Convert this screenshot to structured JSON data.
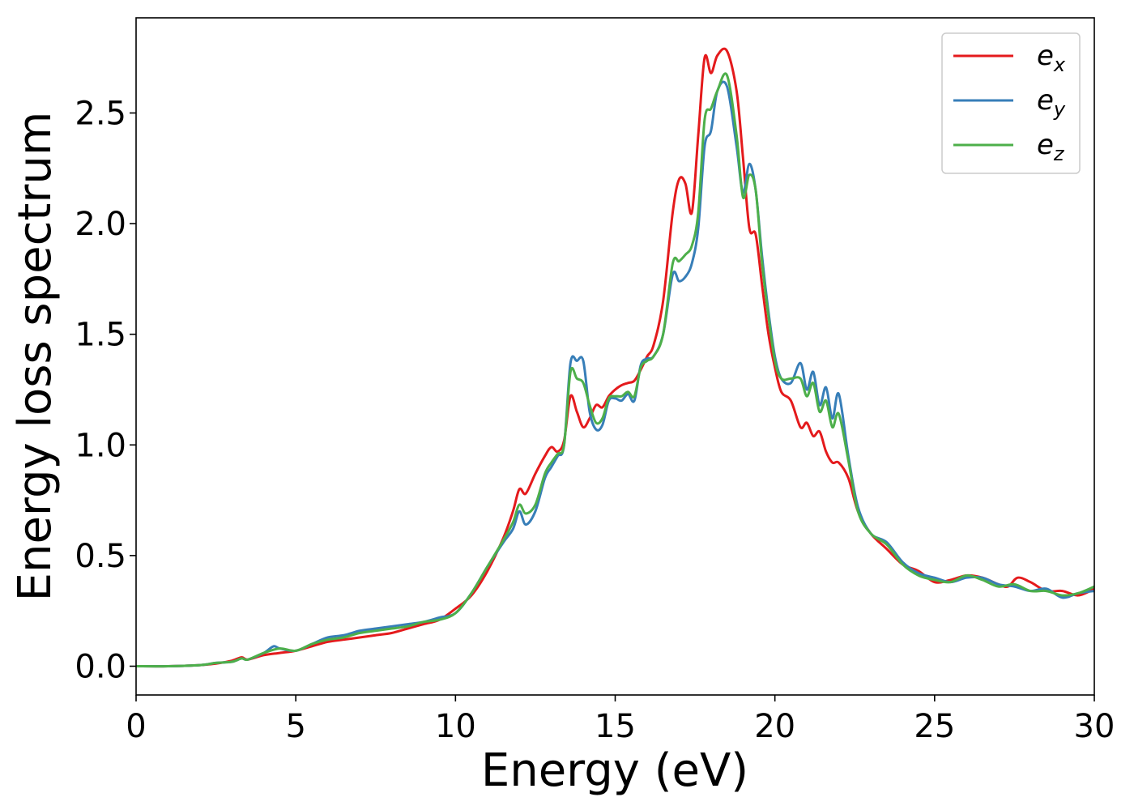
{
  "chart_data": {
    "type": "line",
    "xlabel": "Energy (eV)",
    "ylabel": "Energy loss spectrum",
    "xlim": [
      0,
      30
    ],
    "ylim": [
      -0.13,
      2.93
    ],
    "xticks": [
      0,
      5,
      10,
      15,
      20,
      25,
      30
    ],
    "xtick_labels": [
      "0",
      "5",
      "10",
      "15",
      "20",
      "25",
      "30"
    ],
    "yticks": [
      0.0,
      0.5,
      1.0,
      1.5,
      2.0,
      2.5
    ],
    "ytick_labels": [
      "0.0",
      "0.5",
      "1.0",
      "1.5",
      "2.0",
      "2.5"
    ],
    "grid": false,
    "legend_position": "top-right",
    "series": [
      {
        "name": "e_x",
        "legend_main": "e",
        "legend_sub": "x",
        "color": "#e41a1c",
        "x": [
          0,
          1,
          2,
          2.5,
          3,
          3.3,
          3.5,
          4,
          4.5,
          5,
          5.5,
          6,
          6.5,
          7,
          7.5,
          8,
          8.5,
          9,
          9.5,
          10,
          10.5,
          11,
          11.5,
          11.8,
          12,
          12.2,
          12.5,
          12.8,
          13,
          13.2,
          13.4,
          13.6,
          13.8,
          14,
          14.2,
          14.4,
          14.6,
          14.8,
          15,
          15.2,
          15.4,
          15.6,
          15.8,
          16,
          16.2,
          16.5,
          16.8,
          17,
          17.2,
          17.4,
          17.6,
          17.8,
          18,
          18.2,
          18.5,
          18.8,
          19,
          19.2,
          19.4,
          19.6,
          19.8,
          20,
          20.2,
          20.5,
          20.8,
          21,
          21.2,
          21.4,
          21.6,
          21.8,
          22,
          22.3,
          22.6,
          23,
          23.5,
          24,
          24.5,
          25,
          25.5,
          26,
          26.5,
          27,
          27.3,
          27.6,
          28,
          28.5,
          29,
          29.5,
          30
        ],
        "y": [
          0,
          0,
          0.005,
          0.012,
          0.025,
          0.04,
          0.03,
          0.05,
          0.06,
          0.07,
          0.09,
          0.11,
          0.12,
          0.13,
          0.14,
          0.15,
          0.17,
          0.19,
          0.21,
          0.26,
          0.32,
          0.43,
          0.58,
          0.7,
          0.8,
          0.78,
          0.87,
          0.95,
          0.99,
          0.97,
          1.02,
          1.22,
          1.15,
          1.08,
          1.12,
          1.18,
          1.17,
          1.22,
          1.25,
          1.27,
          1.28,
          1.29,
          1.34,
          1.4,
          1.45,
          1.65,
          2.05,
          2.2,
          2.18,
          2.05,
          2.4,
          2.75,
          2.68,
          2.76,
          2.78,
          2.6,
          2.3,
          1.98,
          1.95,
          1.72,
          1.5,
          1.35,
          1.24,
          1.2,
          1.08,
          1.1,
          1.04,
          1.06,
          0.97,
          0.92,
          0.92,
          0.85,
          0.7,
          0.6,
          0.53,
          0.46,
          0.43,
          0.38,
          0.39,
          0.41,
          0.4,
          0.37,
          0.36,
          0.4,
          0.38,
          0.34,
          0.34,
          0.32,
          0.35
        ]
      },
      {
        "name": "e_y",
        "legend_main": "e",
        "legend_sub": "y",
        "color": "#377eb8",
        "x": [
          0,
          1,
          2,
          2.5,
          3,
          3.3,
          3.5,
          4,
          4.3,
          4.5,
          5,
          5.5,
          6,
          6.5,
          7,
          7.5,
          8,
          8.5,
          9,
          9.5,
          10,
          10.5,
          11,
          11.5,
          11.8,
          12,
          12.2,
          12.5,
          12.8,
          13,
          13.2,
          13.4,
          13.6,
          13.8,
          14,
          14.2,
          14.4,
          14.6,
          14.8,
          15,
          15.2,
          15.4,
          15.6,
          15.8,
          16,
          16.2,
          16.5,
          16.8,
          17,
          17.2,
          17.4,
          17.6,
          17.8,
          18,
          18.2,
          18.5,
          18.8,
          19,
          19.2,
          19.4,
          19.6,
          19.8,
          20,
          20.2,
          20.5,
          20.8,
          21,
          21.2,
          21.4,
          21.6,
          21.8,
          22,
          22.3,
          22.6,
          23,
          23.5,
          24,
          24.5,
          25,
          25.5,
          26,
          26.5,
          27,
          27.5,
          28,
          28.5,
          29,
          29.5,
          30
        ],
        "y": [
          0,
          0,
          0.005,
          0.015,
          0.02,
          0.035,
          0.03,
          0.06,
          0.09,
          0.08,
          0.07,
          0.1,
          0.13,
          0.14,
          0.16,
          0.17,
          0.18,
          0.19,
          0.2,
          0.22,
          0.24,
          0.33,
          0.45,
          0.56,
          0.62,
          0.7,
          0.64,
          0.7,
          0.85,
          0.9,
          0.95,
          1.0,
          1.37,
          1.38,
          1.38,
          1.15,
          1.07,
          1.09,
          1.2,
          1.21,
          1.2,
          1.23,
          1.2,
          1.36,
          1.39,
          1.4,
          1.5,
          1.77,
          1.74,
          1.76,
          1.82,
          1.98,
          2.35,
          2.42,
          2.6,
          2.62,
          2.35,
          2.14,
          2.27,
          2.15,
          1.85,
          1.6,
          1.4,
          1.3,
          1.28,
          1.37,
          1.25,
          1.33,
          1.18,
          1.26,
          1.12,
          1.23,
          0.95,
          0.72,
          0.6,
          0.56,
          0.47,
          0.42,
          0.4,
          0.38,
          0.4,
          0.4,
          0.37,
          0.36,
          0.34,
          0.35,
          0.31,
          0.33,
          0.34
        ]
      },
      {
        "name": "e_z",
        "legend_main": "e",
        "legend_sub": "z",
        "color": "#4daf4a",
        "x": [
          0,
          1,
          2,
          2.5,
          3,
          3.3,
          3.5,
          4,
          4.5,
          5,
          5.5,
          6,
          6.5,
          7,
          7.5,
          8,
          8.5,
          9,
          9.5,
          10,
          10.5,
          11,
          11.5,
          11.8,
          12,
          12.2,
          12.5,
          12.8,
          13,
          13.2,
          13.4,
          13.6,
          13.8,
          14,
          14.2,
          14.4,
          14.6,
          14.8,
          15,
          15.2,
          15.4,
          15.6,
          15.8,
          16,
          16.2,
          16.5,
          16.8,
          17,
          17.2,
          17.4,
          17.6,
          17.8,
          18,
          18.2,
          18.5,
          18.8,
          19,
          19.2,
          19.4,
          19.6,
          19.8,
          20,
          20.2,
          20.5,
          20.8,
          21,
          21.2,
          21.4,
          21.6,
          21.8,
          22,
          22.3,
          22.6,
          23,
          23.5,
          24,
          24.5,
          25,
          25.5,
          26,
          26.5,
          27,
          27.5,
          28,
          28.5,
          29,
          29.5,
          30
        ],
        "y": [
          0,
          0,
          0.005,
          0.015,
          0.02,
          0.035,
          0.03,
          0.06,
          0.08,
          0.07,
          0.1,
          0.12,
          0.13,
          0.15,
          0.16,
          0.17,
          0.18,
          0.2,
          0.21,
          0.24,
          0.33,
          0.45,
          0.57,
          0.65,
          0.73,
          0.69,
          0.73,
          0.87,
          0.92,
          0.96,
          1.0,
          1.33,
          1.3,
          1.28,
          1.18,
          1.1,
          1.12,
          1.21,
          1.22,
          1.22,
          1.24,
          1.22,
          1.35,
          1.38,
          1.4,
          1.5,
          1.82,
          1.83,
          1.86,
          1.9,
          2.05,
          2.47,
          2.52,
          2.6,
          2.67,
          2.4,
          2.12,
          2.22,
          2.15,
          1.82,
          1.58,
          1.38,
          1.3,
          1.3,
          1.3,
          1.22,
          1.28,
          1.15,
          1.2,
          1.08,
          1.14,
          0.93,
          0.7,
          0.6,
          0.55,
          0.46,
          0.41,
          0.39,
          0.38,
          0.41,
          0.39,
          0.36,
          0.37,
          0.34,
          0.34,
          0.32,
          0.33,
          0.36
        ]
      }
    ]
  }
}
